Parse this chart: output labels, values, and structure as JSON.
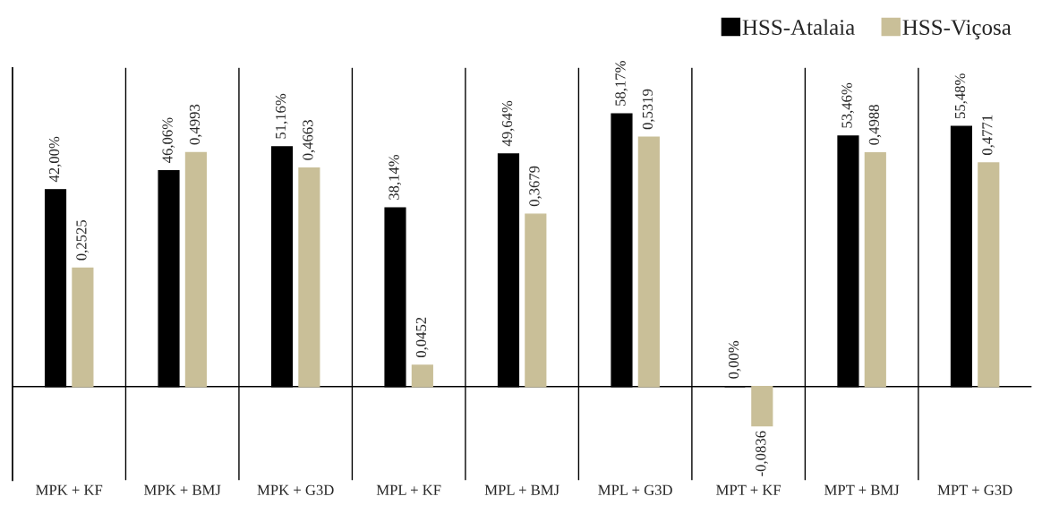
{
  "chart_data": {
    "type": "bar",
    "categories": [
      "MPK + KF",
      "MPK + BMJ",
      "MPK + G3D",
      "MPL + KF",
      "MPL + BMJ",
      "MPL + G3D",
      "MPT + KF",
      "MPT + BMJ",
      "MPT + G3D"
    ],
    "series": [
      {
        "name": "HSS-Atalaia",
        "color": "#000000",
        "values": [
          0.42,
          0.4606,
          0.5116,
          0.3814,
          0.4964,
          0.5817,
          0.0,
          0.5346,
          0.5548
        ],
        "value_labels": [
          "42,00%",
          "46,06%",
          "51,16%",
          "38,14%",
          "49,64%",
          "58,17%",
          "0,00%",
          "53,46%",
          "55,48%"
        ]
      },
      {
        "name": "HSS-Viçosa",
        "color": "#c9bf98",
        "values": [
          0.2525,
          0.4993,
          0.4663,
          0.0452,
          0.3679,
          0.5319,
          -0.0836,
          0.4988,
          0.4771
        ],
        "value_labels": [
          "0,2525",
          "0,4993",
          "0,4663",
          "0,0452",
          "0,3679",
          "0,5319",
          "-0,0836",
          "0,4988",
          "0,4771"
        ]
      }
    ],
    "ylim": [
      -0.2,
      0.68
    ],
    "grid": "x",
    "legend": "top right",
    "tick_labels": "x"
  }
}
